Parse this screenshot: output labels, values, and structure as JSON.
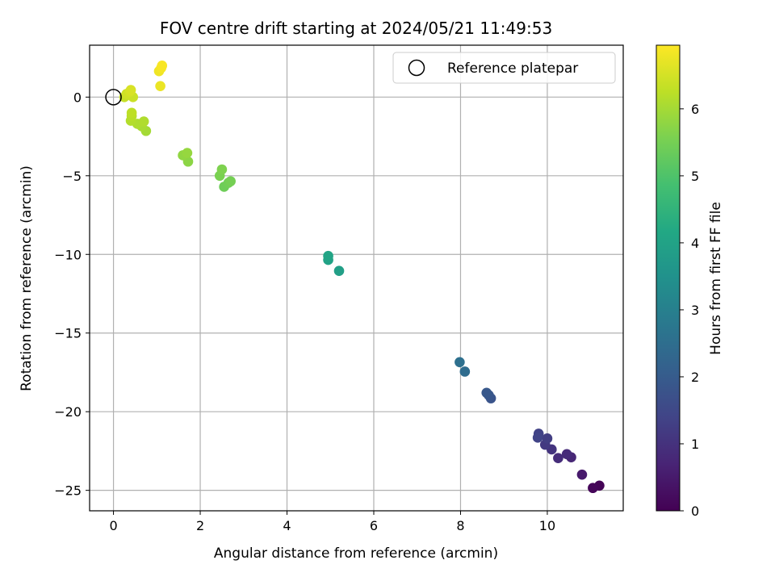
{
  "chart_data": {
    "type": "scatter",
    "title": "FOV centre drift starting at 2024/05/21 11:49:53",
    "xlabel": "Angular distance from reference (arcmin)",
    "ylabel": "Rotation from reference (arcmin)",
    "xlim": [
      -0.55,
      11.75
    ],
    "ylim": [
      -26.3,
      3.3
    ],
    "xticks": [
      0,
      2,
      4,
      6,
      8,
      10
    ],
    "yticks": [
      0,
      -5,
      -10,
      -15,
      -20,
      -25
    ],
    "xtick_labels": [
      "0",
      "2",
      "4",
      "6",
      "8",
      "10"
    ],
    "ytick_labels": [
      "0",
      "−5",
      "−10",
      "−15",
      "−20",
      "−25"
    ],
    "grid": true,
    "legend": {
      "placement": "top-right",
      "entries": [
        {
          "label": "Reference platepar",
          "marker": "open-circle"
        }
      ]
    },
    "reference_point": {
      "x": 0,
      "y": 0
    },
    "colorbar": {
      "label": "Hours from first FF file",
      "colormap": "viridis",
      "range": [
        0,
        6.95
      ],
      "ticks": [
        0,
        1,
        2,
        3,
        4,
        5,
        6
      ],
      "tick_labels": [
        "0",
        "1",
        "2",
        "3",
        "4",
        "5",
        "6"
      ]
    },
    "points": [
      {
        "x": 11.2,
        "y": -24.7,
        "hours": 0.05
      },
      {
        "x": 11.05,
        "y": -24.85,
        "hours": 0.1
      },
      {
        "x": 10.8,
        "y": -24.0,
        "hours": 0.5
      },
      {
        "x": 10.55,
        "y": -22.9,
        "hours": 0.75
      },
      {
        "x": 10.45,
        "y": -22.7,
        "hours": 0.85
      },
      {
        "x": 10.25,
        "y": -22.95,
        "hours": 0.9
      },
      {
        "x": 10.1,
        "y": -22.4,
        "hours": 1.05
      },
      {
        "x": 9.95,
        "y": -22.1,
        "hours": 1.15
      },
      {
        "x": 10.0,
        "y": -21.7,
        "hours": 1.25
      },
      {
        "x": 9.8,
        "y": -21.4,
        "hours": 1.35
      },
      {
        "x": 9.78,
        "y": -21.65,
        "hours": 1.4
      },
      {
        "x": 8.7,
        "y": -19.15,
        "hours": 1.8
      },
      {
        "x": 8.65,
        "y": -18.95,
        "hours": 1.85
      },
      {
        "x": 8.6,
        "y": -18.8,
        "hours": 1.9
      },
      {
        "x": 8.1,
        "y": -17.45,
        "hours": 2.45
      },
      {
        "x": 7.98,
        "y": -16.85,
        "hours": 2.55
      },
      {
        "x": 5.2,
        "y": -11.05,
        "hours": 3.9
      },
      {
        "x": 4.95,
        "y": -10.35,
        "hours": 4.0
      },
      {
        "x": 4.95,
        "y": -10.1,
        "hours": 4.05
      },
      {
        "x": 2.55,
        "y": -5.7,
        "hours": 5.4
      },
      {
        "x": 2.65,
        "y": -5.45,
        "hours": 5.45
      },
      {
        "x": 2.7,
        "y": -5.35,
        "hours": 5.5
      },
      {
        "x": 2.45,
        "y": -5.0,
        "hours": 5.55
      },
      {
        "x": 2.5,
        "y": -4.6,
        "hours": 5.6
      },
      {
        "x": 1.72,
        "y": -4.1,
        "hours": 5.75
      },
      {
        "x": 1.6,
        "y": -3.7,
        "hours": 5.8
      },
      {
        "x": 1.7,
        "y": -3.55,
        "hours": 5.85
      },
      {
        "x": 0.75,
        "y": -2.15,
        "hours": 6.0
      },
      {
        "x": 0.65,
        "y": -1.85,
        "hours": 6.05
      },
      {
        "x": 0.55,
        "y": -1.7,
        "hours": 6.1
      },
      {
        "x": 0.7,
        "y": -1.55,
        "hours": 6.12
      },
      {
        "x": 0.4,
        "y": -1.5,
        "hours": 6.15
      },
      {
        "x": 0.42,
        "y": -1.2,
        "hours": 6.2
      },
      {
        "x": 0.42,
        "y": -1.0,
        "hours": 6.25
      },
      {
        "x": 0.25,
        "y": 0.0,
        "hours": 6.35
      },
      {
        "x": 0.45,
        "y": 0.0,
        "hours": 6.4
      },
      {
        "x": 0.3,
        "y": 0.2,
        "hours": 6.45
      },
      {
        "x": 0.38,
        "y": 0.35,
        "hours": 6.5
      },
      {
        "x": 0.4,
        "y": 0.45,
        "hours": 6.55
      },
      {
        "x": 1.08,
        "y": 0.7,
        "hours": 6.75
      },
      {
        "x": 1.05,
        "y": 1.65,
        "hours": 6.8
      },
      {
        "x": 1.1,
        "y": 1.85,
        "hours": 6.85
      },
      {
        "x": 1.12,
        "y": 2.0,
        "hours": 6.9
      }
    ]
  }
}
